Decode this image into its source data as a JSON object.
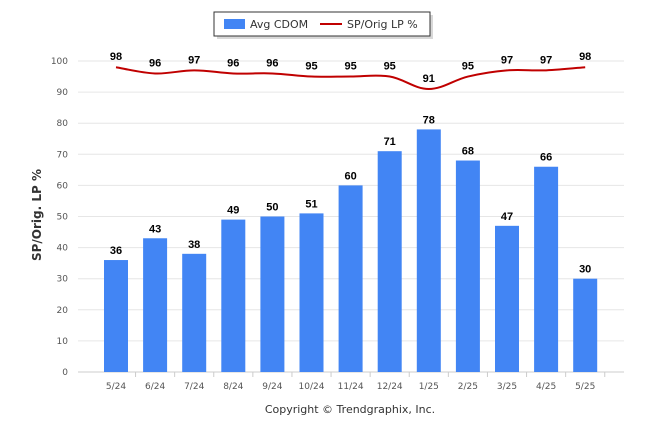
{
  "chart_data": {
    "type": "bar",
    "categories": [
      "5/24",
      "6/24",
      "7/24",
      "8/24",
      "9/24",
      "10/24",
      "11/24",
      "12/24",
      "1/25",
      "2/25",
      "3/25",
      "4/25",
      "5/25"
    ],
    "series": [
      {
        "name": "Avg CDOM",
        "type": "bar",
        "color": "#4285f4",
        "values": [
          36,
          43,
          38,
          49,
          50,
          51,
          60,
          71,
          78,
          68,
          47,
          66,
          30
        ]
      },
      {
        "name": "SP/Orig LP %",
        "type": "line",
        "color": "#c00000",
        "values": [
          98,
          96,
          97,
          96,
          96,
          95,
          95,
          95,
          91,
          95,
          97,
          97,
          98
        ]
      }
    ],
    "ylabel": "SP/Orig. LP %",
    "ylim": [
      0,
      100
    ],
    "yticks": [
      0,
      10,
      20,
      30,
      40,
      50,
      60,
      70,
      80,
      90,
      100
    ],
    "grid": true,
    "legend_position": "top-center",
    "credit": "Copyright © Trendgraphix, Inc."
  }
}
